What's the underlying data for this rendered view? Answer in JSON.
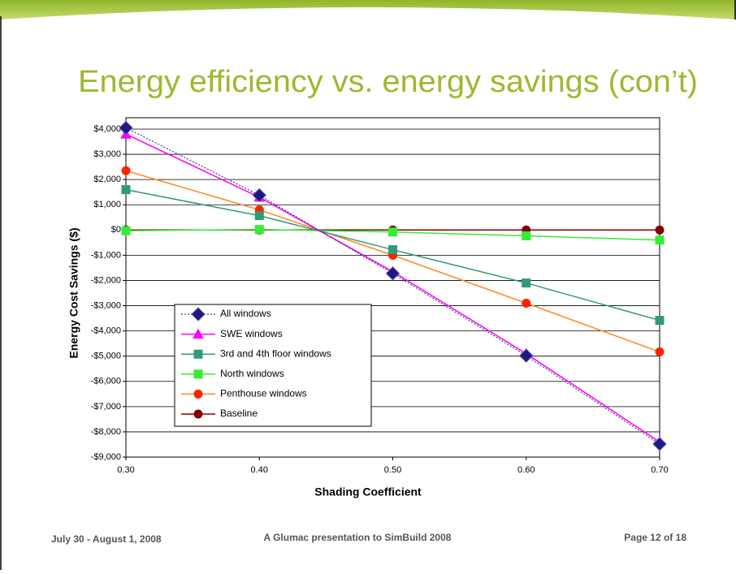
{
  "chart_data": {
    "type": "line",
    "title": "Energy efficiency vs. energy savings (con’t)",
    "x_label": "Shading Coefficient",
    "y_label": "Energy Cost Savings ($)",
    "x": [
      0.3,
      0.4,
      0.5,
      0.6,
      0.7
    ],
    "xlim": [
      0.3,
      0.7
    ],
    "xticks": [
      {
        "value": 0.3,
        "label": "0.30"
      },
      {
        "value": 0.4,
        "label": "0.40"
      },
      {
        "value": 0.5,
        "label": "0.50"
      },
      {
        "value": 0.6,
        "label": "0.60"
      },
      {
        "value": 0.7,
        "label": "0.70"
      }
    ],
    "ylim": [
      -9000,
      4000
    ],
    "yticks": [
      {
        "value": 4000,
        "label": "$4,000"
      },
      {
        "value": 3000,
        "label": "$3,000"
      },
      {
        "value": 2000,
        "label": "$2,000"
      },
      {
        "value": 1000,
        "label": "$1,000"
      },
      {
        "value": 0,
        "label": "$0"
      },
      {
        "value": -1000,
        "label": "-$1,000"
      },
      {
        "value": -2000,
        "label": "-$2,000"
      },
      {
        "value": -3000,
        "label": "-$3,000"
      },
      {
        "value": -4000,
        "label": "-$4,000"
      },
      {
        "value": -5000,
        "label": "-$5,000"
      },
      {
        "value": -6000,
        "label": "-$6,000"
      },
      {
        "value": -7000,
        "label": "-$7,000"
      },
      {
        "value": -8000,
        "label": "-$8,000"
      },
      {
        "value": -9000,
        "label": "-$9,000"
      }
    ],
    "grid": true,
    "legend": "lower left",
    "series": [
      {
        "name": "All windows",
        "color": "#1a1a80",
        "line_color": "#1a1a80",
        "dashed": true,
        "marker": "diamond",
        "values": [
          4050,
          1380,
          -1720,
          -4980,
          -8480
        ]
      },
      {
        "name": "SWE windows",
        "color": "#ff00ff",
        "line_color": "#ff00ff",
        "dashed": false,
        "marker": "triangle",
        "values": [
          3800,
          1300,
          -1650,
          -4900,
          -8400
        ]
      },
      {
        "name": "3rd and 4th floor windows",
        "color": "#339977",
        "line_color": "#339977",
        "dashed": false,
        "marker": "square",
        "values": [
          1600,
          570,
          -780,
          -2100,
          -3580
        ]
      },
      {
        "name": "North windows",
        "color": "#33ee33",
        "line_color": "#33ee33",
        "dashed": false,
        "marker": "square",
        "values": [
          -30,
          20,
          -80,
          -230,
          -400
        ]
      },
      {
        "name": "Penthouse windows",
        "color": "#ff2200",
        "line_color": "#ff8822",
        "dashed": false,
        "marker": "circle",
        "values": [
          2350,
          800,
          -1000,
          -2900,
          -4830
        ]
      },
      {
        "name": "Baseline",
        "color": "#800000",
        "line_color": "#800000",
        "dashed": false,
        "marker": "circle",
        "values": [
          0,
          0,
          0,
          0,
          0
        ]
      }
    ]
  },
  "footer": {
    "left": "July 30 - August 1, 2008",
    "center": "A Glumac presentation to SimBuild 2008",
    "right": "Page 12 of 18"
  }
}
